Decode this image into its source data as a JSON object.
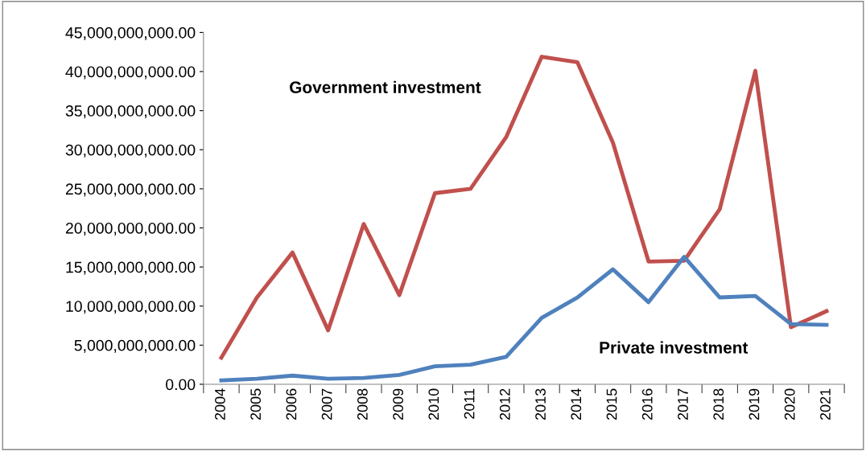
{
  "chart_data": {
    "type": "line",
    "categories": [
      "2004",
      "2005",
      "2006",
      "2007",
      "2008",
      "2009",
      "2010",
      "2011",
      "2012",
      "2013",
      "2014",
      "2015",
      "2016",
      "2017",
      "2018",
      "2019",
      "2020",
      "2021"
    ],
    "series": [
      {
        "name": "Government investment",
        "color": "#c0504d",
        "values": [
          3400000000,
          11100000000,
          16850000000,
          6900000000,
          20500000000,
          11400000000,
          24450000000,
          25000000000,
          31600000000,
          41900000000,
          41200000000,
          30900000000,
          15700000000,
          15800000000,
          22400000000,
          40100000000,
          7300000000,
          9350000000
        ]
      },
      {
        "name": "Private investment",
        "color": "#4f81bd",
        "values": [
          500000000,
          700000000,
          1100000000,
          700000000,
          800000000,
          1200000000,
          2300000000,
          2500000000,
          3500000000,
          8500000000,
          11100000000,
          14700000000,
          10500000000,
          16300000000,
          11100000000,
          11300000000,
          7700000000,
          7600000000
        ]
      }
    ],
    "ylim": [
      0,
      45000000000
    ],
    "yticks": [
      {
        "value": 0,
        "label": "0.00"
      },
      {
        "value": 5000000000,
        "label": "5,000,000,000.00"
      },
      {
        "value": 10000000000,
        "label": "10,000,000,000.00"
      },
      {
        "value": 15000000000,
        "label": "15,000,000,000.00"
      },
      {
        "value": 20000000000,
        "label": "20,000,000,000.00"
      },
      {
        "value": 25000000000,
        "label": "25,000,000,000.00"
      },
      {
        "value": 30000000000,
        "label": "30,000,000,000.00"
      },
      {
        "value": 35000000000,
        "label": "35,000,000,000.00"
      },
      {
        "value": 40000000000,
        "label": "40,000,000,000.00"
      },
      {
        "value": 45000000000,
        "label": "45,000,000,000.00"
      }
    ],
    "grid": false,
    "legend": false,
    "marker": "none",
    "line_style": "solid"
  }
}
